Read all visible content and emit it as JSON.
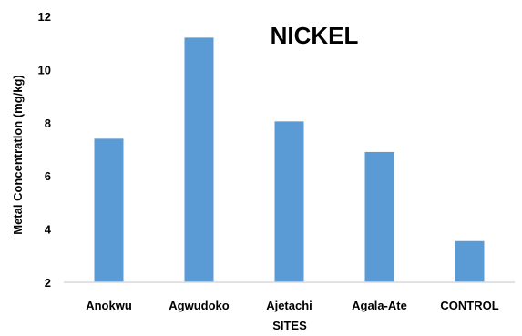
{
  "chart_data": {
    "type": "bar",
    "title": "NICKEL",
    "xlabel": "SITES",
    "ylabel": "Metal Concentration (mg/kg)",
    "categories": [
      "Anokwu",
      "Agwudoko",
      "Ajetachi",
      "Agala-Ate",
      "CONTROL"
    ],
    "values": [
      7.4,
      11.2,
      8.05,
      6.9,
      3.55
    ],
    "ylim": [
      2,
      12
    ],
    "yticks": [
      "2",
      "4",
      "6",
      "8",
      "10",
      "12"
    ],
    "grid": false,
    "legend": "none",
    "bar_color": "#5b9bd5",
    "axis_color": "#d9d9d9"
  }
}
